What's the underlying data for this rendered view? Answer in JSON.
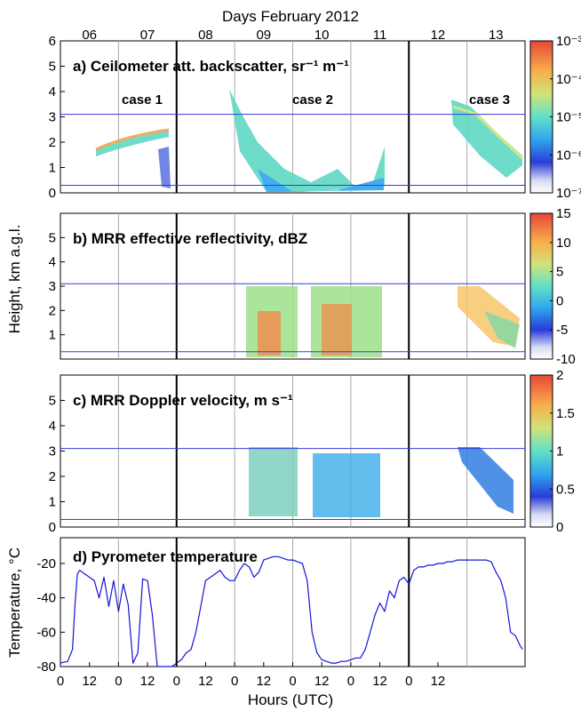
{
  "figure": {
    "top_title": "Days February 2012",
    "x_title": "Hours (UTC)",
    "shared_ylabel": "Height, km a.g.l.",
    "day_labels": [
      "06",
      "07",
      "08",
      "09",
      "10",
      "11",
      "12",
      "13"
    ],
    "hour_labels": [
      "0",
      "12",
      "0",
      "12",
      "0",
      "12",
      "0",
      "12",
      "0",
      "12",
      "0",
      "12",
      "0",
      "12"
    ]
  },
  "chart_data": [
    {
      "panel": "a",
      "type": "heatmap",
      "title": "a) Ceilometer att. backscatter, sr⁻¹ m⁻¹",
      "ylim": [
        0,
        6
      ],
      "yticks": [
        "0",
        "1",
        "2",
        "3",
        "4",
        "5",
        "6"
      ],
      "scale": "log",
      "colorbar": {
        "ticks": [
          "10⁻⁷",
          "10⁻⁶",
          "10⁻⁵",
          "10⁻⁴",
          "10⁻³"
        ]
      },
      "annotations": [
        "case 1",
        "case 2",
        "case 3"
      ],
      "hlines_km": [
        0.3,
        3.1
      ],
      "case_boundaries_hours": [
        36,
        132
      ]
    },
    {
      "panel": "b",
      "type": "heatmap",
      "title": "b) MRR effective reflectivity, dBZ",
      "ylim": [
        0,
        6
      ],
      "yticks": [
        "1",
        "2",
        "3",
        "4",
        "5"
      ],
      "colorbar": {
        "ticks": [
          "-10",
          "-5",
          "0",
          "5",
          "10",
          "15"
        ]
      },
      "hlines_km": [
        0.3,
        3.1
      ]
    },
    {
      "panel": "c",
      "type": "heatmap",
      "title": "c) MRR Doppler velocity, m s⁻¹",
      "ylim": [
        0,
        6
      ],
      "yticks": [
        "0",
        "1",
        "2",
        "3",
        "4",
        "5"
      ],
      "colorbar": {
        "ticks": [
          "0",
          "0.5",
          "1",
          "1.5",
          "2"
        ]
      },
      "hlines_km": [
        0.3,
        3.1
      ]
    },
    {
      "panel": "d",
      "type": "line",
      "title": "d) Pyrometer temperature",
      "ylabel": "Temperature, °C",
      "ylim": [
        -80,
        -5
      ],
      "yticks": [
        "-80",
        "-60",
        "-40",
        "-20"
      ],
      "x_hours": [
        0,
        3,
        5,
        6,
        7,
        8,
        10,
        12,
        14,
        16,
        18,
        20,
        22,
        24,
        26,
        28,
        30,
        32,
        34,
        36,
        38,
        40,
        42,
        44,
        46,
        48,
        50,
        52,
        54,
        56,
        58,
        60,
        62,
        64,
        66,
        68,
        70,
        72,
        74,
        76,
        78,
        80,
        82,
        84,
        86,
        88,
        90,
        92,
        94,
        96,
        98,
        100,
        102,
        104,
        106,
        108,
        110,
        112,
        114,
        116,
        118,
        120,
        122,
        124,
        126,
        128,
        130,
        132,
        134,
        136,
        138,
        140,
        142,
        144,
        146,
        148,
        150,
        152,
        154,
        156,
        158,
        160,
        162,
        164,
        166,
        168,
        170,
        172,
        174,
        176,
        178,
        180,
        182,
        184,
        186,
        188,
        190,
        191
      ],
      "temperature": [
        -78,
        -77,
        -70,
        -45,
        -26,
        -24,
        -26,
        -28,
        -30,
        -40,
        -28,
        -45,
        -30,
        -48,
        -32,
        -44,
        -78,
        -72,
        -29,
        -30,
        -50,
        -80,
        -80,
        -80,
        -80,
        -78,
        -76,
        -72,
        -70,
        -60,
        -45,
        -30,
        -28,
        -26,
        -24,
        -28,
        -30,
        -30,
        -24,
        -20,
        -22,
        -28,
        -25,
        -18,
        -17,
        -16,
        -16,
        -17,
        -18,
        -18,
        -19,
        -20,
        -30,
        -60,
        -72,
        -76,
        -77,
        -78,
        -78,
        -77,
        -77,
        -76,
        -75,
        -75,
        -70,
        -60,
        -50,
        -43,
        -48,
        -36,
        -40,
        -30,
        -28,
        -32,
        -24,
        -22,
        -22,
        -21,
        -21,
        -20,
        -20,
        -19,
        -19,
        -18,
        -18,
        -18,
        -18,
        -18,
        -18,
        -18,
        -19,
        -25,
        -30,
        -40,
        -60,
        -62,
        -68,
        -70
      ]
    }
  ]
}
